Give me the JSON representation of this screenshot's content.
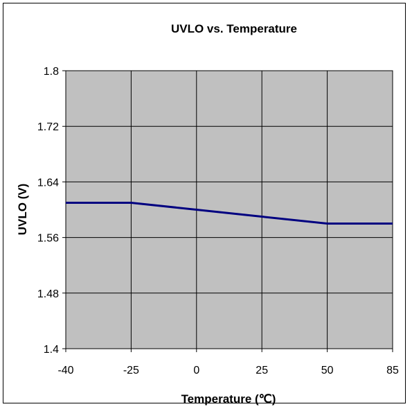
{
  "chart_data": {
    "type": "line",
    "title": "UVLO vs. Temperature",
    "xlabel": "Temperature (℃)",
    "ylabel": "UVLO (V)",
    "categories": [
      "-40",
      "-25",
      "0",
      "25",
      "50",
      "85"
    ],
    "series": [
      {
        "values": [
          1.61,
          1.61,
          1.6,
          1.59,
          1.58,
          1.58
        ],
        "color": "#000080"
      }
    ],
    "ylim": [
      1.4,
      1.8
    ],
    "yticks": [
      "1.8",
      "1.72",
      "1.64",
      "1.56",
      "1.48",
      "1.4"
    ],
    "grid": true,
    "plot_background": "#c0c0c0",
    "legend": "none"
  }
}
